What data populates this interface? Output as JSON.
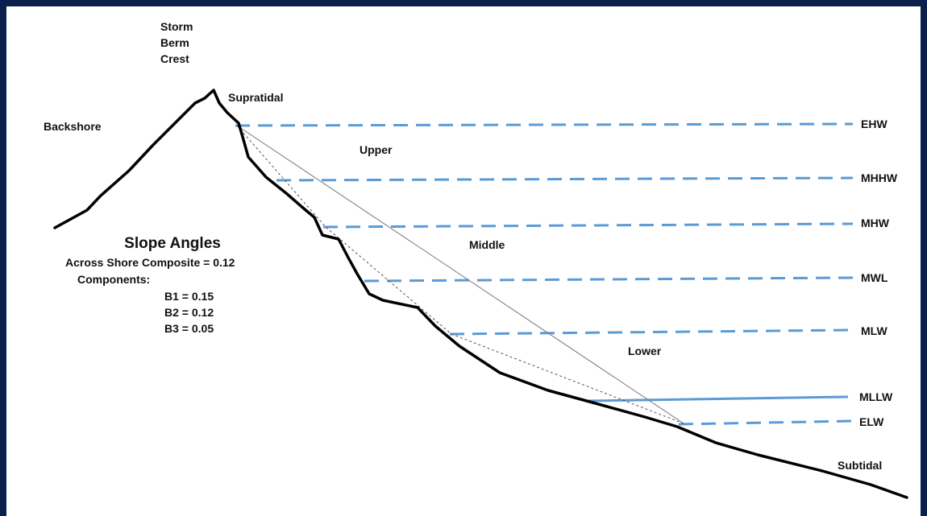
{
  "diagram": {
    "peak_label": [
      "Storm",
      "Berm",
      "Crest"
    ],
    "backshore": "Backshore",
    "supratidal": "Supratidal",
    "subtidal": "Subtidal",
    "zones": {
      "upper": "Upper",
      "middle": "Middle",
      "lower": "Lower"
    },
    "tide_levels": [
      "EHW",
      "MHHW",
      "MHW",
      "MWL",
      "MLW",
      "MLLW",
      "ELW"
    ],
    "slope_panel": {
      "title": "Slope Angles",
      "composite": "Across Shore Composite = 0.12",
      "components_label": "Components:",
      "components": [
        "B1 = 0.15",
        "B2 = 0.12",
        "B3 = 0.05"
      ]
    },
    "colors": {
      "border": "#0b1f4d",
      "background": "#ffffff",
      "profile": "#000000",
      "tide_line": "#5b9bd5",
      "guide_line": "#555555"
    }
  }
}
